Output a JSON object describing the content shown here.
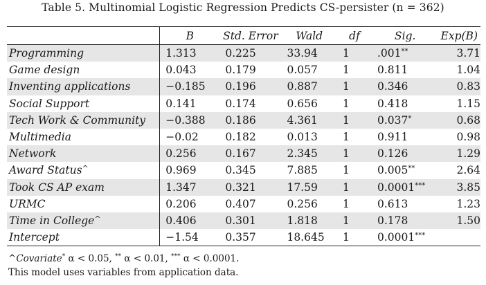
{
  "caption": "Table 5.  Multinomial Logistic Regression Predicts CS-persister (n  =  362)",
  "columns": [
    "B",
    "Std. Error",
    "Wald",
    "df",
    "Sig.",
    "Exp(B)"
  ],
  "rows": [
    {
      "variable": "Programming",
      "caret": "",
      "b": "1.313",
      "se": "0.225",
      "wald": "33.94",
      "df": "1",
      "sig": ".001",
      "stars": "**",
      "exp": "3.71"
    },
    {
      "variable": "Game design",
      "caret": "",
      "b": "0.043",
      "se": "0.179",
      "wald": "0.057",
      "df": "1",
      "sig": "0.811",
      "stars": "",
      "exp": "1.04"
    },
    {
      "variable": "Inventing applications",
      "caret": "",
      "b": "−0.185",
      "se": "0.196",
      "wald": "0.887",
      "df": "1",
      "sig": "0.346",
      "stars": "",
      "exp": "0.83"
    },
    {
      "variable": "Social Support",
      "caret": "",
      "b": "0.141",
      "se": "0.174",
      "wald": "0.656",
      "df": "1",
      "sig": "0.418",
      "stars": "",
      "exp": "1.15"
    },
    {
      "variable": "Tech Work & Community",
      "caret": "",
      "b": "−0.388",
      "se": "0.186",
      "wald": "4.361",
      "df": "1",
      "sig": "0.037",
      "stars": "*",
      "exp": "0.68"
    },
    {
      "variable": "Multimedia",
      "caret": "",
      "b": "−0.02",
      "se": "0.182",
      "wald": "0.013",
      "df": "1",
      "sig": "0.911",
      "stars": "",
      "exp": "0.98"
    },
    {
      "variable": "Network",
      "caret": "",
      "b": "0.256",
      "se": "0.167",
      "wald": "2.345",
      "df": "1",
      "sig": "0.126",
      "stars": "",
      "exp": "1.29"
    },
    {
      "variable": "Award Status",
      "caret": "^",
      "b": "0.969",
      "se": "0.345",
      "wald": "7.885",
      "df": "1",
      "sig": "0.005",
      "stars": "**",
      "exp": "2.64"
    },
    {
      "variable": "Took CS AP exam",
      "caret": "",
      "b": "1.347",
      "se": "0.321",
      "wald": "17.59",
      "df": "1",
      "sig": "0.0001",
      "stars": "***",
      "exp": "3.85"
    },
    {
      "variable": "URMC",
      "caret": "",
      "b": "0.206",
      "se": "0.407",
      "wald": "0.256",
      "df": "1",
      "sig": "0.613",
      "stars": "",
      "exp": "1.23"
    },
    {
      "variable": "Time in College",
      "caret": "^",
      "b": "0.406",
      "se": "0.301",
      "wald": "1.818",
      "df": "1",
      "sig": "0.178",
      "stars": "",
      "exp": "1.50"
    },
    {
      "variable": "Intercept",
      "caret": "",
      "b": "−1.54",
      "se": "0.357",
      "wald": "18.645",
      "df": "1",
      "sig": "0.0001",
      "stars": "***",
      "exp": ""
    }
  ],
  "footnote": {
    "caret": "^",
    "covariate": "Covariate",
    "star1": "*",
    "p1": " α < 0.05, ",
    "star2": "**",
    "p2": " α < 0.01, ",
    "star3": "***",
    "p3": " α < 0.0001.",
    "line2": "This model uses variables from application data."
  }
}
